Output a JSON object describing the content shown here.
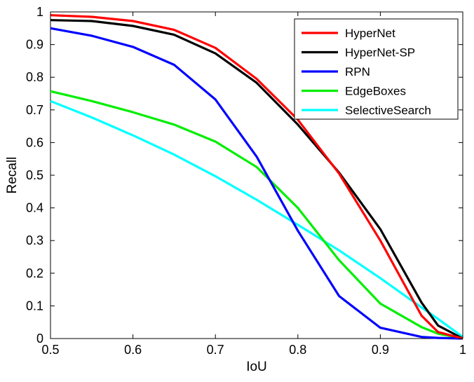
{
  "chart_data": {
    "type": "line",
    "xlabel": "IoU",
    "ylabel": "Recall",
    "xlim": [
      0.5,
      1
    ],
    "ylim": [
      0,
      1
    ],
    "xticks": [
      "0.5",
      "0.6",
      "0.7",
      "0.8",
      "0.9",
      "1"
    ],
    "yticks": [
      "0",
      "0.1",
      "0.2",
      "0.3",
      "0.4",
      "0.5",
      "0.6",
      "0.7",
      "0.8",
      "0.9",
      "1"
    ],
    "grid": false,
    "legend_position": "top-right",
    "x": [
      0.5,
      0.55,
      0.6,
      0.65,
      0.7,
      0.75,
      0.8,
      0.85,
      0.9,
      0.95,
      0.97,
      1.0
    ],
    "series": [
      {
        "name": "HyperNet",
        "color": "#ff0000",
        "values": [
          0.99,
          0.985,
          0.972,
          0.945,
          0.89,
          0.795,
          0.67,
          0.505,
          0.3,
          0.07,
          0.02,
          0.0
        ]
      },
      {
        "name": "HyperNet-SP",
        "color": "#000000",
        "values": [
          0.975,
          0.972,
          0.957,
          0.93,
          0.873,
          0.783,
          0.655,
          0.508,
          0.335,
          0.11,
          0.04,
          0.0
        ]
      },
      {
        "name": "RPN",
        "color": "#0000ff",
        "values": [
          0.95,
          0.927,
          0.893,
          0.838,
          0.732,
          0.557,
          0.33,
          0.13,
          0.033,
          0.005,
          0.002,
          0.0
        ]
      },
      {
        "name": "EdgeBoxes",
        "color": "#00ee00",
        "values": [
          0.757,
          0.727,
          0.693,
          0.655,
          0.603,
          0.525,
          0.4,
          0.24,
          0.107,
          0.035,
          0.015,
          0.0
        ]
      },
      {
        "name": "SelectiveSearch",
        "color": "#00ffff",
        "values": [
          0.727,
          0.677,
          0.622,
          0.563,
          0.497,
          0.425,
          0.348,
          0.27,
          0.185,
          0.095,
          0.06,
          0.005
        ]
      }
    ]
  }
}
